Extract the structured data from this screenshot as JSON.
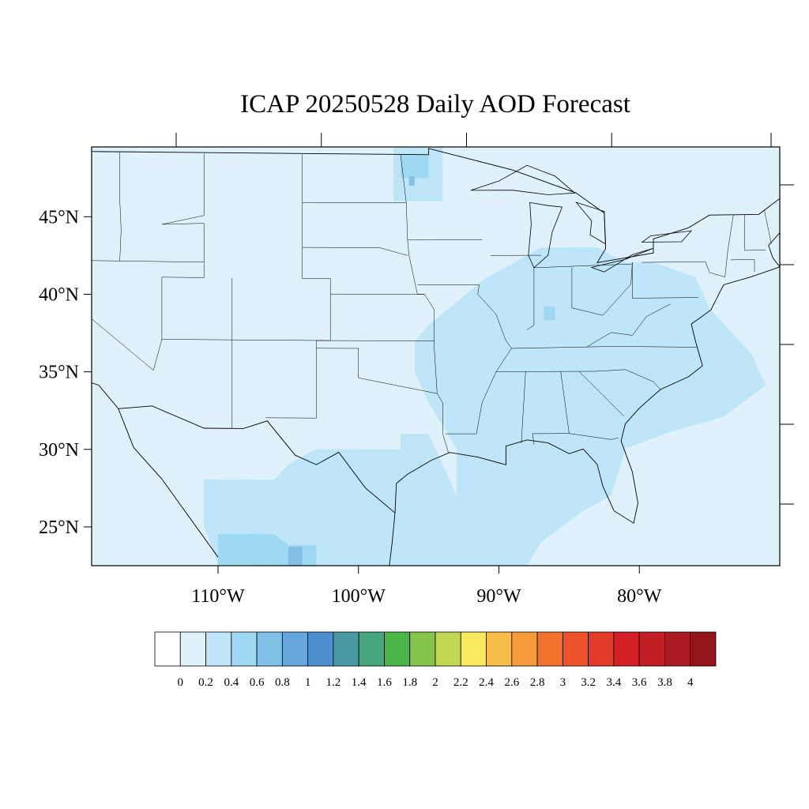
{
  "title": "ICAP 20250528 Daily AOD Forecast",
  "map": {
    "region": "Contiguous United States",
    "lat_range": [
      22.5,
      49.5
    ],
    "lon_range": [
      -119,
      -70
    ],
    "background_value": "0-0.2",
    "lat_ticks": [
      {
        "value": 45,
        "label": "45°N"
      },
      {
        "value": 40,
        "label": "40°N"
      },
      {
        "value": 35,
        "label": "35°N"
      },
      {
        "value": 30,
        "label": "30°N"
      },
      {
        "value": 25,
        "label": "25°N"
      }
    ],
    "lon_ticks": [
      {
        "value": -110,
        "label": "110°W"
      },
      {
        "value": -100,
        "label": "100°W"
      },
      {
        "value": -90,
        "label": "90°W"
      },
      {
        "value": -80,
        "label": "80°W"
      }
    ],
    "aod_regions": [
      {
        "name": "mexico-north",
        "level": "0.2-0.4",
        "lonlat": [
          [
            -111,
            28
          ],
          [
            -106,
            28
          ],
          [
            -105,
            29
          ],
          [
            -103,
            30
          ],
          [
            -97,
            30
          ],
          [
            -97,
            31
          ],
          [
            -95,
            31
          ],
          [
            -94,
            29
          ],
          [
            -93,
            27
          ],
          [
            -92,
            26
          ],
          [
            -92,
            22.5
          ],
          [
            -110,
            22.5
          ],
          [
            -111,
            25
          ]
        ]
      },
      {
        "name": "mexico-core",
        "level": "0.4-0.6",
        "lonlat": [
          [
            -110,
            24.5
          ],
          [
            -106,
            24.5
          ],
          [
            -105,
            23.8
          ],
          [
            -103,
            23.8
          ],
          [
            -103,
            22.5
          ],
          [
            -110,
            22.5
          ]
        ]
      },
      {
        "name": "mexico-peak",
        "level": "0.6-0.8",
        "lonlat": [
          [
            -105,
            23.7
          ],
          [
            -104,
            23.7
          ],
          [
            -104,
            22.5
          ],
          [
            -105,
            22.5
          ]
        ]
      },
      {
        "name": "ohio-valley",
        "level": "0.2-0.4",
        "lonlat": [
          [
            -96,
            37
          ],
          [
            -95,
            38
          ],
          [
            -93,
            39.5
          ],
          [
            -91,
            41
          ],
          [
            -89,
            42
          ],
          [
            -87,
            43
          ],
          [
            -83,
            43
          ],
          [
            -81,
            42
          ],
          [
            -79,
            42
          ],
          [
            -76,
            41
          ],
          [
            -75,
            39
          ],
          [
            -73,
            37
          ],
          [
            -72,
            36
          ],
          [
            -71,
            34
          ],
          [
            -74,
            32
          ],
          [
            -78,
            31
          ],
          [
            -81,
            30
          ],
          [
            -82,
            27
          ],
          [
            -84,
            26
          ],
          [
            -87,
            24
          ],
          [
            -88,
            22.5
          ],
          [
            -93,
            22.5
          ],
          [
            -93,
            26
          ],
          [
            -93,
            30
          ],
          [
            -95,
            33
          ],
          [
            -96,
            35
          ]
        ]
      },
      {
        "name": "ohio-spot",
        "level": "0.4-0.6",
        "lonlat": [
          [
            -86.8,
            39.2
          ],
          [
            -86,
            39.2
          ],
          [
            -86,
            38.3
          ],
          [
            -86.8,
            38.3
          ]
        ]
      },
      {
        "name": "minnesota-spot",
        "level": "0.4-0.6",
        "lonlat": [
          [
            -97,
            49
          ],
          [
            -95,
            49
          ],
          [
            -95,
            47.5
          ],
          [
            -97,
            47.5
          ]
        ]
      },
      {
        "name": "minnesota-core",
        "level": "0.6-0.8",
        "lonlat": [
          [
            -96.4,
            47.6
          ],
          [
            -96,
            47.6
          ],
          [
            -96,
            47
          ],
          [
            -96.4,
            47
          ]
        ]
      },
      {
        "name": "minnesota-halo",
        "level": "0.2-0.4",
        "lonlat": [
          [
            -97.5,
            50
          ],
          [
            -94,
            50
          ],
          [
            -94,
            46
          ],
          [
            -97.5,
            46
          ]
        ]
      }
    ]
  },
  "colorbar": {
    "colors": [
      "#ffffff",
      "#dff2fc",
      "#bee5f8",
      "#9ed8f3",
      "#80bfe6",
      "#65a6dc",
      "#4c8fcf",
      "#4a9aa2",
      "#47a77c",
      "#4bb548",
      "#84c44b",
      "#c1d753",
      "#f7e85d",
      "#f7bb47",
      "#f69b3c",
      "#f2712d",
      "#ec532b",
      "#e33b29",
      "#d41f26",
      "#c21e25",
      "#ab1b22",
      "#921619"
    ],
    "labels": [
      "0",
      "0.2",
      "0.4",
      "0.6",
      "0.8",
      "1",
      "1.2",
      "1.4",
      "1.6",
      "1.8",
      "2",
      "2.2",
      "2.4",
      "2.6",
      "2.8",
      "3",
      "3.2",
      "3.4",
      "3.6",
      "3.8",
      "4"
    ]
  }
}
